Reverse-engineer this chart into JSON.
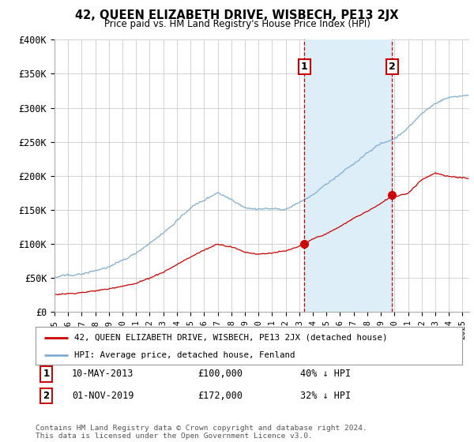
{
  "title": "42, QUEEN ELIZABETH DRIVE, WISBECH, PE13 2JX",
  "subtitle": "Price paid vs. HM Land Registry's House Price Index (HPI)",
  "ylabel_ticks": [
    "£0",
    "£50K",
    "£100K",
    "£150K",
    "£200K",
    "£250K",
    "£300K",
    "£350K",
    "£400K"
  ],
  "ylim": [
    0,
    400000
  ],
  "xlim_start": 1995.0,
  "xlim_end": 2025.5,
  "red_line_label": "42, QUEEN ELIZABETH DRIVE, WISBECH, PE13 2JX (detached house)",
  "blue_line_label": "HPI: Average price, detached house, Fenland",
  "sale1_date": "10-MAY-2013",
  "sale1_price": "£100,000",
  "sale1_pct": "40% ↓ HPI",
  "sale1_x": 2013.36,
  "sale1_y": 100000,
  "sale2_date": "01-NOV-2019",
  "sale2_price": "£172,000",
  "sale2_pct": "32% ↓ HPI",
  "sale2_x": 2019.83,
  "sale2_y": 172000,
  "footer": "Contains HM Land Registry data © Crown copyright and database right 2024.\nThis data is licensed under the Open Government Licence v3.0.",
  "bg_color": "#ffffff",
  "grid_color": "#cccccc",
  "red_color": "#cc0000",
  "blue_color": "#7eadd4",
  "shade_color": "#ddeef8"
}
